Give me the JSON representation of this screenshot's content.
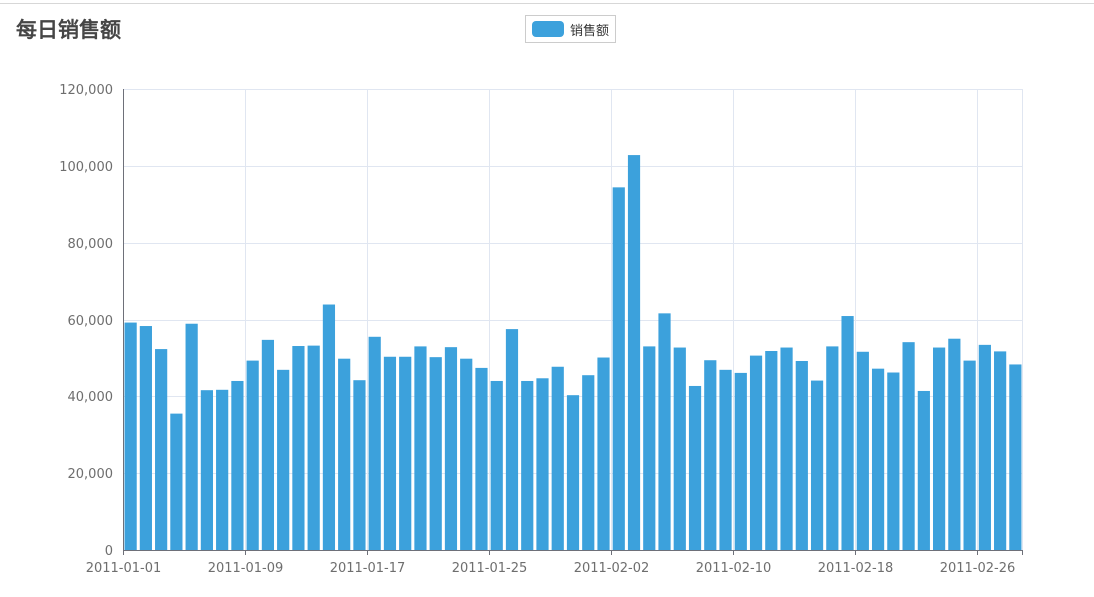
{
  "chart_data": {
    "type": "bar",
    "title": "每日销售额",
    "legend": {
      "position": "top-center",
      "entries": [
        "销售额"
      ]
    },
    "grid": true,
    "ylim": [
      0,
      120000
    ],
    "yticks": [
      "0",
      "20,000",
      "40,000",
      "60,000",
      "80,000",
      "100,000",
      "120,000"
    ],
    "ytick_values": [
      0,
      20000,
      40000,
      60000,
      80000,
      100000,
      120000
    ],
    "xtick_labels": [
      "2011-01-01",
      "2011-01-09",
      "2011-01-17",
      "2011-01-25",
      "2011-02-02",
      "2011-02-10",
      "2011-02-18",
      "2011-02-26"
    ],
    "xtick_interval": 8,
    "color": "#3ca1dc",
    "categories": [
      "2011-01-01",
      "2011-01-02",
      "2011-01-03",
      "2011-01-04",
      "2011-01-05",
      "2011-01-06",
      "2011-01-07",
      "2011-01-08",
      "2011-01-09",
      "2011-01-10",
      "2011-01-11",
      "2011-01-12",
      "2011-01-13",
      "2011-01-14",
      "2011-01-15",
      "2011-01-16",
      "2011-01-17",
      "2011-01-18",
      "2011-01-19",
      "2011-01-20",
      "2011-01-21",
      "2011-01-22",
      "2011-01-23",
      "2011-01-24",
      "2011-01-25",
      "2011-01-26",
      "2011-01-27",
      "2011-01-28",
      "2011-01-29",
      "2011-01-30",
      "2011-01-31",
      "2011-02-01",
      "2011-02-02",
      "2011-02-03",
      "2011-02-04",
      "2011-02-05",
      "2011-02-06",
      "2011-02-07",
      "2011-02-08",
      "2011-02-09",
      "2011-02-10",
      "2011-02-11",
      "2011-02-12",
      "2011-02-13",
      "2011-02-14",
      "2011-02-15",
      "2011-02-16",
      "2011-02-17",
      "2011-02-18",
      "2011-02-19",
      "2011-02-20",
      "2011-02-21",
      "2011-02-22",
      "2011-02-23",
      "2011-02-24",
      "2011-02-25",
      "2011-02-26",
      "2011-02-27",
      "2011-02-28"
    ],
    "series": [
      {
        "name": "销售额",
        "values": [
          59200,
          58300,
          52300,
          35500,
          58900,
          41600,
          41700,
          44000,
          49300,
          54700,
          46900,
          53100,
          53200,
          63900,
          49800,
          44200,
          55500,
          50300,
          50300,
          53000,
          50200,
          52800,
          49800,
          47400,
          44000,
          57500,
          44000,
          44700,
          47700,
          40300,
          45500,
          50100,
          94400,
          102800,
          53000,
          61600,
          52700,
          42700,
          49400,
          46900,
          46100,
          50600,
          51800,
          52700,
          49200,
          44100,
          53000,
          60900,
          51600,
          47200,
          46200,
          54100,
          41400,
          52700,
          55000,
          49300,
          53400,
          51700,
          48300
        ]
      }
    ]
  }
}
